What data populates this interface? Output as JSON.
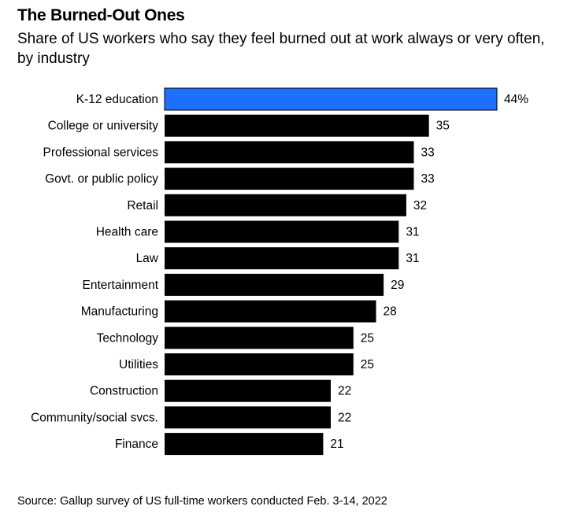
{
  "title": "The Burned-Out Ones",
  "subtitle": "Share of US workers who say they feel burned out at work always or very often, by industry",
  "source": "Source: Gallup survey of US full-time workers conducted Feb. 3-14, 2022",
  "colors": {
    "highlight": "#1f6fff",
    "bar": "#000000"
  },
  "chart_data": {
    "type": "bar",
    "orientation": "horizontal",
    "categories": [
      "K-12 education",
      "College or university",
      "Professional services",
      "Govt. or public policy",
      "Retail",
      "Health care",
      "Law",
      "Entertainment",
      "Manufacturing",
      "Technology",
      "Utilities",
      "Construction",
      "Community/social svcs.",
      "Finance"
    ],
    "values": [
      44,
      35,
      33,
      33,
      32,
      31,
      31,
      29,
      28,
      25,
      25,
      22,
      22,
      21
    ],
    "value_labels": [
      "44%",
      "35",
      "33",
      "33",
      "32",
      "31",
      "31",
      "29",
      "28",
      "25",
      "25",
      "22",
      "22",
      "21"
    ],
    "highlight_category": "K-12 education",
    "xlim": [
      0,
      44
    ],
    "grid": false,
    "axis_visible": false
  }
}
